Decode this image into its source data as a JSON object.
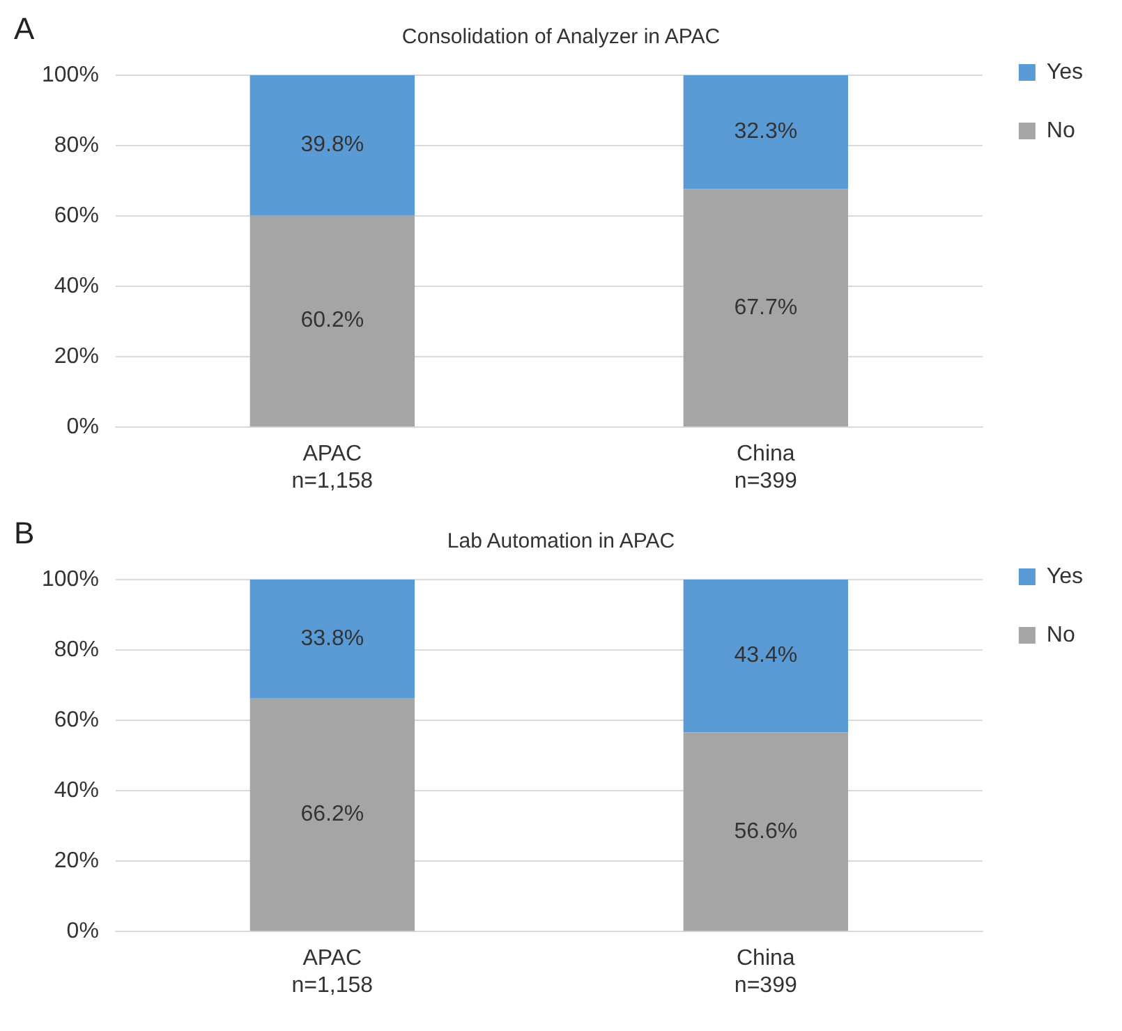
{
  "chart_data": [
    {
      "type": "bar",
      "title": "Consolidation of Analyzer in APAC",
      "annotations": [
        "A"
      ],
      "categories": [
        "APAC\nn=1,158",
        "China\nn=399"
      ],
      "stacked": true,
      "ylim": [
        0,
        100
      ],
      "yticks": [
        {
          "value": 0,
          "label": "0%"
        },
        {
          "value": 20,
          "label": "20%"
        },
        {
          "value": 40,
          "label": "40%"
        },
        {
          "value": 60,
          "label": "60%"
        },
        {
          "value": 80,
          "label": "80%"
        },
        {
          "value": 100,
          "label": "100%"
        }
      ],
      "grid": "y",
      "legend": "right",
      "series": [
        {
          "name": "No",
          "color": "#a5a5a5",
          "values": [
            60.2,
            67.7
          ],
          "value_labels": [
            "60.2%",
            "67.7%"
          ]
        },
        {
          "name": "Yes",
          "color": "#5b9bd5",
          "values": [
            39.8,
            32.3
          ],
          "value_labels": [
            "39.8%",
            "32.3%"
          ]
        }
      ]
    },
    {
      "type": "bar",
      "title": "Lab Automation in APAC",
      "annotations": [
        "B"
      ],
      "categories": [
        "APAC\nn=1,158",
        "China\nn=399"
      ],
      "stacked": true,
      "ylim": [
        0,
        100
      ],
      "yticks": [
        {
          "value": 0,
          "label": "0%"
        },
        {
          "value": 20,
          "label": "20%"
        },
        {
          "value": 40,
          "label": "40%"
        },
        {
          "value": 60,
          "label": "60%"
        },
        {
          "value": 80,
          "label": "80%"
        },
        {
          "value": 100,
          "label": "100%"
        }
      ],
      "grid": "y",
      "legend": "right",
      "series": [
        {
          "name": "No",
          "color": "#a5a5a5",
          "values": [
            66.2,
            56.6
          ],
          "value_labels": [
            "66.2%",
            "56.6%"
          ]
        },
        {
          "name": "Yes",
          "color": "#5b9bd5",
          "values": [
            33.8,
            43.4
          ],
          "value_labels": [
            "33.8%",
            "43.4%"
          ]
        }
      ]
    }
  ]
}
